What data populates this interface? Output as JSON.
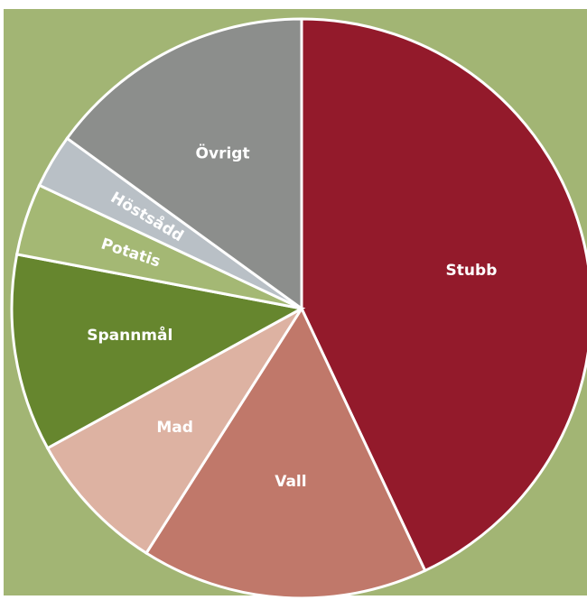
{
  "chart_data": {
    "type": "pie",
    "categories": [
      "Stubb",
      "Vall",
      "Mad",
      "Spannmål",
      "Potatis",
      "Höstsådd",
      "Övrigt"
    ],
    "values": [
      43,
      16,
      8,
      11,
      4,
      3,
      15
    ],
    "colors": [
      "#931a2b",
      "#c0786a",
      "#ddb2a2",
      "#66862e",
      "#a4b874",
      "#b9c0c6",
      "#8c8e8c"
    ],
    "background": "#a2b574"
  }
}
